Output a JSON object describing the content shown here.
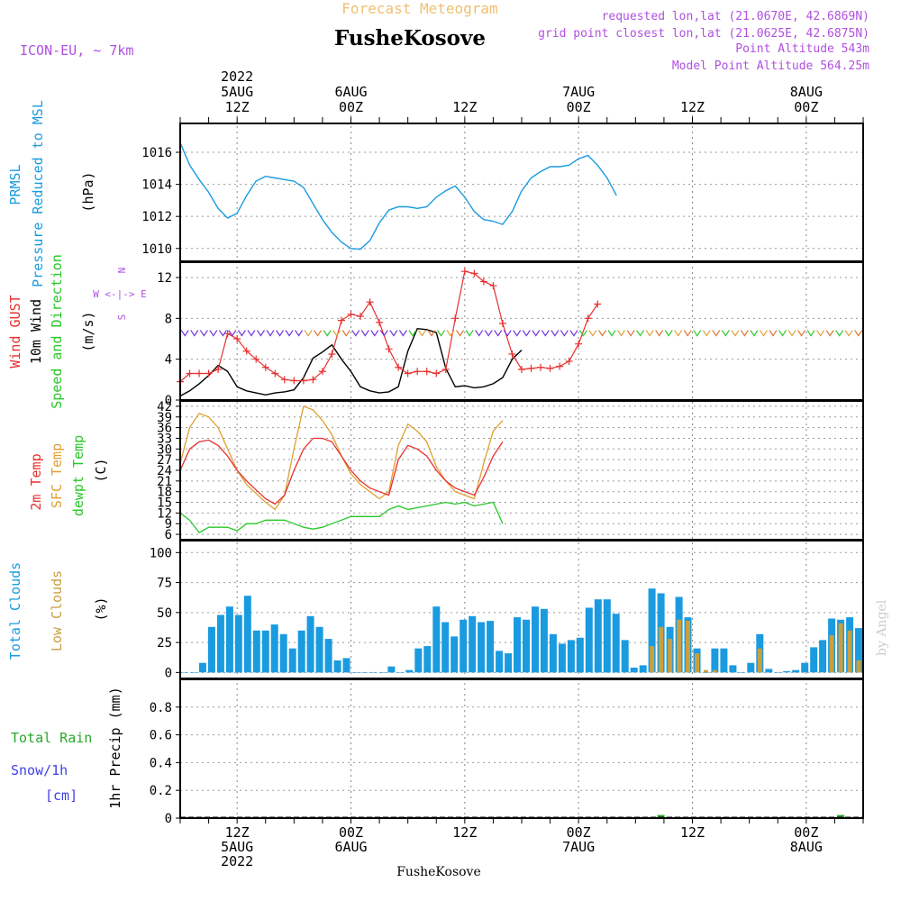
{
  "header": {
    "title": "Forecast Meteogram",
    "model": "ICON-EU, ~ 7km",
    "station": "FusheKosove",
    "requested": "requested lon,lat (21.0670E, 42.6869N)",
    "closest": "grid point closest lon,lat (21.0625E, 42.6875N)",
    "point_alt": "Point Altitude 543m",
    "model_alt": "Model Point Altitude 564.25m",
    "watermark": "by Angel",
    "footer": "FusheKosove"
  },
  "colors": {
    "pressure": "#1a9be0",
    "gust": "#e83030",
    "wind": "#000000",
    "t2m": "#e83030",
    "tsfc": "#e0a030",
    "dewpt": "#28c828",
    "total_cloud": "#1a9be0",
    "low_cloud": "#c8a040",
    "rain": "#28a828",
    "snow": "#4040e8",
    "title": "#f0c070",
    "meta": "#b050e0"
  },
  "chart_data": {
    "type": "meteogram",
    "time": {
      "start_hour": 6,
      "end_hour": 78,
      "unit": "hours from 5 Aug 2022 00Z",
      "top_ticks": [
        {
          "hour": 12,
          "lines": [
            "2022",
            "5AUG",
            "12Z"
          ]
        },
        {
          "hour": 24,
          "lines": [
            "6AUG",
            "00Z"
          ]
        },
        {
          "hour": 36,
          "lines": [
            "12Z"
          ]
        },
        {
          "hour": 48,
          "lines": [
            "7AUG",
            "00Z"
          ]
        },
        {
          "hour": 60,
          "lines": [
            "12Z"
          ]
        },
        {
          "hour": 72,
          "lines": [
            "8AUG",
            "00Z"
          ]
        }
      ],
      "bottom_ticks": [
        {
          "hour": 12,
          "lines": [
            "12Z",
            "5AUG",
            "2022"
          ]
        },
        {
          "hour": 24,
          "lines": [
            "00Z",
            "6AUG"
          ]
        },
        {
          "hour": 36,
          "lines": [
            "12Z"
          ]
        },
        {
          "hour": 48,
          "lines": [
            "00Z",
            "7AUG"
          ]
        },
        {
          "hour": 60,
          "lines": [
            "12Z"
          ]
        },
        {
          "hour": 72,
          "lines": [
            "00Z",
            "8AUG"
          ]
        }
      ]
    },
    "pressure": {
      "labels": [
        "PRMSL",
        "Pressure Reduced to MSL",
        "(hPa)"
      ],
      "ylim": [
        1009.2,
        1017.8
      ],
      "ticks": [
        1010,
        1012,
        1014,
        1016
      ],
      "series": [
        [
          6,
          1016.6
        ],
        [
          7,
          1015.2
        ],
        [
          8,
          1014.3
        ],
        [
          9,
          1013.5
        ],
        [
          10,
          1012.5
        ],
        [
          11,
          1011.9
        ],
        [
          12,
          1012.2
        ],
        [
          13,
          1013.3
        ],
        [
          14,
          1014.2
        ],
        [
          15,
          1014.5
        ],
        [
          16,
          1014.4
        ],
        [
          17,
          1014.3
        ],
        [
          18,
          1014.2
        ],
        [
          19,
          1013.8
        ],
        [
          20,
          1012.8
        ],
        [
          21,
          1011.8
        ],
        [
          22,
          1011.0
        ],
        [
          23,
          1010.4
        ],
        [
          24,
          1010.0
        ],
        [
          25,
          1009.95
        ],
        [
          26,
          1010.5
        ],
        [
          27,
          1011.6
        ],
        [
          28,
          1012.4
        ],
        [
          29,
          1012.6
        ],
        [
          30,
          1012.6
        ],
        [
          31,
          1012.5
        ],
        [
          32,
          1012.6
        ],
        [
          33,
          1013.2
        ],
        [
          34,
          1013.6
        ],
        [
          35,
          1013.9
        ],
        [
          36,
          1013.2
        ],
        [
          37,
          1012.3
        ],
        [
          38,
          1011.8
        ],
        [
          39,
          1011.7
        ],
        [
          40,
          1011.5
        ],
        [
          41,
          1012.3
        ],
        [
          42,
          1013.6
        ],
        [
          43,
          1014.4
        ],
        [
          44,
          1014.8
        ],
        [
          45,
          1015.1
        ],
        [
          46,
          1015.1
        ],
        [
          47,
          1015.2
        ],
        [
          48,
          1015.6
        ],
        [
          49,
          1015.8
        ],
        [
          50,
          1015.2
        ],
        [
          51,
          1014.4
        ],
        [
          52,
          1013.3
        ]
      ]
    },
    "wind": {
      "labels": [
        "Wind GUST",
        "10m Wind",
        "Speed and Direction",
        "(m/s)"
      ],
      "compass": [
        "N",
        "W <-|-> E",
        "S"
      ],
      "ylim": [
        0,
        13.5
      ],
      "ticks": [
        0,
        4,
        8,
        12
      ],
      "gust": [
        [
          6,
          1.8
        ],
        [
          7,
          2.6
        ],
        [
          8,
          2.6
        ],
        [
          9,
          2.6
        ],
        [
          10,
          3.0
        ],
        [
          11,
          6.5
        ],
        [
          12,
          6.0
        ],
        [
          13,
          4.8
        ],
        [
          14,
          4.0
        ],
        [
          15,
          3.2
        ],
        [
          16,
          2.6
        ],
        [
          17,
          2.0
        ],
        [
          18,
          1.9
        ],
        [
          19,
          1.9
        ],
        [
          20,
          2.0
        ],
        [
          21,
          2.8
        ],
        [
          22,
          4.5
        ],
        [
          23,
          7.8
        ],
        [
          24,
          8.4
        ],
        [
          25,
          8.2
        ],
        [
          26,
          9.6
        ],
        [
          27,
          7.6
        ],
        [
          28,
          5.0
        ],
        [
          29,
          3.2
        ],
        [
          30,
          2.6
        ],
        [
          31,
          2.8
        ],
        [
          32,
          2.8
        ],
        [
          33,
          2.6
        ],
        [
          34,
          3.0
        ],
        [
          35,
          8.0
        ],
        [
          36,
          12.6
        ],
        [
          37,
          12.4
        ],
        [
          38,
          11.6
        ],
        [
          39,
          11.2
        ],
        [
          40,
          7.5
        ],
        [
          41,
          4.5
        ],
        [
          42,
          3.0
        ],
        [
          43,
          3.1
        ],
        [
          44,
          3.2
        ],
        [
          45,
          3.1
        ],
        [
          46,
          3.3
        ],
        [
          47,
          3.8
        ],
        [
          48,
          5.5
        ],
        [
          49,
          8.0
        ],
        [
          50,
          9.4
        ]
      ],
      "mean": [
        [
          6,
          0.4
        ],
        [
          7,
          0.9
        ],
        [
          8,
          1.6
        ],
        [
          9,
          2.4
        ],
        [
          10,
          3.4
        ],
        [
          11,
          2.8
        ],
        [
          12,
          1.3
        ],
        [
          13,
          0.9
        ],
        [
          14,
          0.7
        ],
        [
          15,
          0.5
        ],
        [
          16,
          0.7
        ],
        [
          17,
          0.8
        ],
        [
          18,
          1.0
        ],
        [
          19,
          2.2
        ],
        [
          20,
          4.1
        ],
        [
          21,
          4.7
        ],
        [
          22,
          5.4
        ],
        [
          23,
          4.0
        ],
        [
          24,
          2.8
        ],
        [
          25,
          1.3
        ],
        [
          26,
          0.9
        ],
        [
          27,
          0.7
        ],
        [
          28,
          0.8
        ],
        [
          29,
          1.3
        ],
        [
          30,
          4.8
        ],
        [
          31,
          7.0
        ],
        [
          32,
          6.9
        ],
        [
          33,
          6.6
        ],
        [
          34,
          3.1
        ],
        [
          35,
          1.3
        ],
        [
          36,
          1.4
        ],
        [
          37,
          1.2
        ],
        [
          38,
          1.3
        ],
        [
          39,
          1.6
        ],
        [
          40,
          2.2
        ],
        [
          41,
          4.0
        ],
        [
          42,
          4.9
        ]
      ]
    },
    "temperature": {
      "labels": [
        "2m Temp",
        "SFC Temp",
        "dewpt Temp",
        "(C)"
      ],
      "ylim": [
        4.5,
        43.5
      ],
      "ticks": [
        6,
        9,
        12,
        15,
        18,
        21,
        24,
        27,
        30,
        33,
        36,
        39,
        42
      ],
      "t2m": [
        [
          6,
          24
        ],
        [
          7,
          30
        ],
        [
          8,
          32
        ],
        [
          9,
          32.5
        ],
        [
          10,
          31
        ],
        [
          11,
          28
        ],
        [
          12,
          24
        ],
        [
          13,
          21
        ],
        [
          14,
          18.5
        ],
        [
          15,
          16
        ],
        [
          16,
          14.5
        ],
        [
          17,
          17
        ],
        [
          18,
          24
        ],
        [
          19,
          30
        ],
        [
          20,
          33
        ],
        [
          21,
          33
        ],
        [
          22,
          32
        ],
        [
          23,
          28
        ],
        [
          24,
          24
        ],
        [
          25,
          21
        ],
        [
          26,
          19
        ],
        [
          27,
          18
        ],
        [
          28,
          17
        ],
        [
          29,
          27
        ],
        [
          30,
          31
        ],
        [
          31,
          30
        ],
        [
          32,
          28
        ],
        [
          33,
          24
        ],
        [
          34,
          21
        ],
        [
          35,
          19
        ],
        [
          36,
          18
        ],
        [
          37,
          17
        ],
        [
          38,
          22
        ],
        [
          39,
          28
        ],
        [
          40,
          32
        ]
      ],
      "tsfc": [
        [
          6,
          26
        ],
        [
          7,
          36
        ],
        [
          8,
          40
        ],
        [
          9,
          39
        ],
        [
          10,
          36
        ],
        [
          11,
          30
        ],
        [
          12,
          24
        ],
        [
          13,
          20
        ],
        [
          14,
          17.5
        ],
        [
          15,
          15
        ],
        [
          16,
          13
        ],
        [
          17,
          17
        ],
        [
          18,
          30
        ],
        [
          19,
          42
        ],
        [
          20,
          41
        ],
        [
          21,
          38
        ],
        [
          22,
          34
        ],
        [
          23,
          28
        ],
        [
          24,
          23
        ],
        [
          25,
          20
        ],
        [
          26,
          18
        ],
        [
          27,
          16
        ],
        [
          28,
          18
        ],
        [
          29,
          31
        ],
        [
          30,
          37
        ],
        [
          31,
          35
        ],
        [
          32,
          32
        ],
        [
          33,
          25
        ],
        [
          34,
          21
        ],
        [
          35,
          18
        ],
        [
          36,
          17
        ],
        [
          37,
          16
        ],
        [
          38,
          26
        ],
        [
          39,
          35
        ],
        [
          40,
          38
        ]
      ],
      "dewpt": [
        [
          6,
          12
        ],
        [
          7,
          10
        ],
        [
          8,
          6.5
        ],
        [
          9,
          8
        ],
        [
          10,
          8
        ],
        [
          11,
          8
        ],
        [
          12,
          7
        ],
        [
          13,
          9
        ],
        [
          14,
          9
        ],
        [
          15,
          10
        ],
        [
          16,
          10
        ],
        [
          17,
          10
        ],
        [
          18,
          9
        ],
        [
          19,
          8
        ],
        [
          20,
          7.5
        ],
        [
          21,
          8
        ],
        [
          22,
          9
        ],
        [
          23,
          10
        ],
        [
          24,
          11
        ],
        [
          25,
          11
        ],
        [
          26,
          11
        ],
        [
          27,
          11
        ],
        [
          28,
          13
        ],
        [
          29,
          14
        ],
        [
          30,
          13
        ],
        [
          31,
          13.5
        ],
        [
          32,
          14
        ],
        [
          33,
          14.5
        ],
        [
          34,
          15
        ],
        [
          35,
          14.5
        ],
        [
          36,
          15
        ],
        [
          37,
          14
        ],
        [
          38,
          14.5
        ],
        [
          39,
          15
        ],
        [
          40,
          9
        ]
      ]
    },
    "clouds": {
      "labels": [
        "Total Clouds",
        "Low Clouds",
        "(%)"
      ],
      "ylim": [
        -5,
        110
      ],
      "ticks": [
        0,
        25,
        50,
        75,
        100
      ],
      "total": [
        0,
        0,
        8,
        38,
        48,
        55,
        48,
        64,
        35,
        35,
        40,
        32,
        20,
        35,
        47,
        38,
        28,
        10,
        12,
        0,
        0,
        0,
        0,
        5,
        0,
        2,
        20,
        22,
        55,
        42,
        30,
        44,
        47,
        42,
        43,
        18,
        16,
        46,
        44,
        55,
        53,
        32,
        24,
        27,
        29,
        54,
        61,
        61,
        49,
        27,
        4,
        6,
        70,
        66,
        38,
        63,
        46,
        20,
        0,
        20,
        20,
        6,
        0,
        8,
        32,
        3,
        0,
        1,
        2,
        8,
        21,
        27,
        45,
        44,
        46,
        37
      ],
      "low": [
        0,
        0,
        0,
        0,
        0,
        0,
        0,
        0,
        0,
        0,
        0,
        0,
        0,
        0,
        0,
        0,
        0,
        0,
        0,
        0,
        0,
        0,
        0,
        0,
        0,
        0,
        0,
        0,
        0,
        0,
        0,
        0,
        0,
        0,
        0,
        0,
        0,
        0,
        0,
        0,
        0,
        0,
        0,
        0,
        0,
        0,
        0,
        0,
        0,
        0,
        0,
        0,
        22,
        38,
        28,
        44,
        43,
        16,
        2,
        2,
        0,
        0,
        0,
        0,
        20,
        0,
        0,
        0,
        0,
        0,
        0,
        0,
        31,
        41,
        35,
        10
      ]
    },
    "precip": {
      "labels": [
        "Total Rain",
        "Snow/1h",
        "[cm]",
        "1hr Precip (mm)"
      ],
      "ylim": [
        0,
        1.0
      ],
      "ticks": [
        0,
        0.2,
        0.4,
        0.6,
        0.8
      ],
      "rain": [
        0,
        0,
        0,
        0,
        0,
        0,
        0,
        0,
        0,
        0,
        0,
        0,
        0,
        0,
        0,
        0,
        0,
        0,
        0,
        0,
        0,
        0,
        0,
        0,
        0,
        0,
        0,
        0,
        0,
        0,
        0,
        0,
        0,
        0,
        0,
        0,
        0,
        0,
        0,
        0,
        0,
        0,
        0,
        0,
        0,
        0,
        0,
        0,
        0,
        0,
        0,
        0,
        0,
        0.01,
        0,
        0,
        0,
        0,
        0,
        0,
        0,
        0,
        0,
        0,
        0,
        0,
        0,
        0,
        0,
        0,
        0,
        0,
        0,
        0.01,
        0,
        0
      ]
    }
  }
}
